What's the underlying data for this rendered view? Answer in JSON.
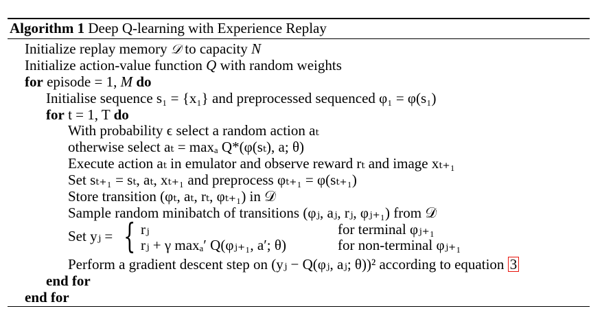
{
  "algorithm": {
    "label": "Algorithm 1",
    "title": "Deep Q-learning with Experience Replay",
    "lines": [
      {
        "pre": "Initialize replay memory ",
        "m1": "𝒟",
        "mid": " to capacity ",
        "m2": "N"
      },
      {
        "pre": "Initialize action-value function ",
        "m1": "Q",
        "post": " with random weights"
      },
      {
        "kw1": "for",
        "text": " episode = 1, ",
        "m1": "M",
        "kw2": "do"
      },
      {
        "text": "Initialise sequence s₁ = {x₁} and preprocessed sequenced φ₁ = φ(s₁)"
      },
      {
        "kw1": "for",
        "text": " t = 1, T ",
        "kw2": "do"
      },
      {
        "text": "With probability ϵ select a random action aₜ"
      },
      {
        "text": "otherwise select aₜ = maxₐ Q*(φ(sₜ), a; θ)"
      },
      {
        "text": "Execute action aₜ in emulator and observe reward rₜ and image xₜ₊₁"
      },
      {
        "text": "Set sₜ₊₁ = sₜ, aₜ, xₜ₊₁ and preprocess φₜ₊₁ = φ(sₜ₊₁)"
      },
      {
        "text": "Store transition (φₜ, aₜ, rₜ, φₜ₊₁) in 𝒟"
      },
      {
        "text": "Sample random minibatch of transitions (φⱼ, aⱼ, rⱼ, φⱼ₊₁) from 𝒟"
      },
      {
        "set_label": "Set yⱼ =",
        "case1_expr": "rⱼ",
        "case1_cond": "for terminal φⱼ₊₁",
        "case2_expr": "rⱼ + γ maxₐ′ Q(φⱼ₊₁, a′; θ)",
        "case2_cond": "for non-terminal φⱼ₊₁"
      },
      {
        "text": "Perform a gradient descent step on (yⱼ − Q(φⱼ, aⱼ; θ))² according to equation",
        "ref": "3"
      },
      {
        "kw": "end for"
      },
      {
        "kw": "end for"
      }
    ]
  }
}
